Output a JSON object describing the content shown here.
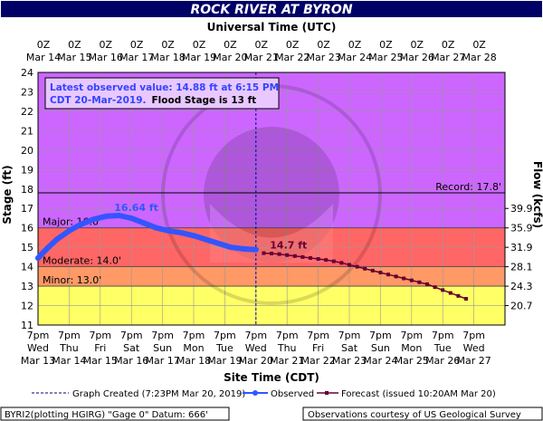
{
  "title": "ROCK RIVER AT BYRON",
  "top_axis_title": "Universal Time (UTC)",
  "bottom_axis_title": "Site Time (CDT)",
  "left_axis_title": "Stage (ft)",
  "right_axis_title": "Flow (kcfs)",
  "info_box": {
    "line1": "Latest observed value: 14.88 ft at 6:15 PM",
    "line2_blue": "CDT 20-Mar-2019.",
    "line2_black": "Flood Stage is 13 ft"
  },
  "legend": {
    "graph_created": "Graph Created (7:23PM Mar 20, 2019)",
    "observed": "Observed",
    "forecast": "Forecast (issued 10:20AM Mar 20)"
  },
  "footer": {
    "left": "BYRI2(plotting HGIRG) \"Gage 0\" Datum: 666'",
    "right": "Observations courtesy of US Geological Survey"
  },
  "colors": {
    "title_bg": "#000066",
    "major": "#ff6666",
    "moderate": "#ff9966",
    "minor": "#ffff66",
    "above_major": "#cc66ff",
    "below_minor": "#ffff66",
    "observed": "#3355ff",
    "forecast": "#660033",
    "now_line": "#0000cc"
  },
  "chart_data": {
    "type": "line",
    "ylim": [
      11,
      24
    ],
    "yticks": [
      11,
      12,
      13,
      14,
      15,
      16,
      17,
      18,
      19,
      20,
      21,
      22,
      23,
      24
    ],
    "xlim_days": [
      13,
      28
    ],
    "bottom_ticks": [
      {
        "time": "7pm",
        "day": "Wed",
        "date": "Mar 13"
      },
      {
        "time": "7pm",
        "day": "Thu",
        "date": "Mar 14"
      },
      {
        "time": "7pm",
        "day": "Fri",
        "date": "Mar 15"
      },
      {
        "time": "7pm",
        "day": "Sat",
        "date": "Mar 16"
      },
      {
        "time": "7pm",
        "day": "Sun",
        "date": "Mar 17"
      },
      {
        "time": "7pm",
        "day": "Mon",
        "date": "Mar 18"
      },
      {
        "time": "7pm",
        "day": "Tue",
        "date": "Mar 19"
      },
      {
        "time": "7pm",
        "day": "Wed",
        "date": "Mar 20"
      },
      {
        "time": "7pm",
        "day": "Thu",
        "date": "Mar 21"
      },
      {
        "time": "7pm",
        "day": "Fri",
        "date": "Mar 22"
      },
      {
        "time": "7pm",
        "day": "Sat",
        "date": "Mar 23"
      },
      {
        "time": "7pm",
        "day": "Sun",
        "date": "Mar 24"
      },
      {
        "time": "7pm",
        "day": "Mon",
        "date": "Mar 25"
      },
      {
        "time": "7pm",
        "day": "Tue",
        "date": "Mar 26"
      },
      {
        "time": "7pm",
        "day": "Wed",
        "date": "Mar 27"
      }
    ],
    "top_ticks": [
      {
        "time": "0Z",
        "date": "Mar 14"
      },
      {
        "time": "0Z",
        "date": "Mar 15"
      },
      {
        "time": "0Z",
        "date": "Mar 16"
      },
      {
        "time": "0Z",
        "date": "Mar 17"
      },
      {
        "time": "0Z",
        "date": "Mar 18"
      },
      {
        "time": "0Z",
        "date": "Mar 19"
      },
      {
        "time": "0Z",
        "date": "Mar 20"
      },
      {
        "time": "0Z",
        "date": "Mar 21"
      },
      {
        "time": "0Z",
        "date": "Mar 22"
      },
      {
        "time": "0Z",
        "date": "Mar 23"
      },
      {
        "time": "0Z",
        "date": "Mar 24"
      },
      {
        "time": "0Z",
        "date": "Mar 25"
      },
      {
        "time": "0Z",
        "date": "Mar 26"
      },
      {
        "time": "0Z",
        "date": "Mar 27"
      },
      {
        "time": "0Z",
        "date": "Mar 28"
      }
    ],
    "flow_ticks": [
      {
        "stage": 12,
        "label": "20.7"
      },
      {
        "stage": 13,
        "label": "24.3"
      },
      {
        "stage": 14,
        "label": "28.1"
      },
      {
        "stage": 15,
        "label": "31.9"
      },
      {
        "stage": 16,
        "label": "35.9"
      },
      {
        "stage": 17,
        "label": "39.9"
      }
    ],
    "flood_categories": [
      {
        "name": "Record",
        "label": "Record: 17.8'",
        "stage": 17.8
      },
      {
        "name": "Major",
        "label": "Major: 16.0'",
        "stage": 16.0
      },
      {
        "name": "Moderate",
        "label": "Moderate: 14.0'",
        "stage": 14.0
      },
      {
        "name": "Minor",
        "label": "Minor: 13.0'",
        "stage": 13.0
      }
    ],
    "now_day": 20,
    "annotations": [
      {
        "text": "16.64 ft",
        "x": 15.45,
        "y": 16.64
      },
      {
        "text": "14.7 ft",
        "x": 20.45,
        "y": 14.7
      }
    ],
    "series": [
      {
        "name": "Observed",
        "x": [
          13.0,
          13.3,
          13.6,
          14.0,
          14.4,
          14.8,
          15.2,
          15.6,
          16.0,
          16.4,
          16.8,
          17.2,
          17.6,
          18.0,
          18.4,
          18.8,
          19.2,
          19.6,
          20.0
        ],
        "y": [
          14.45,
          14.95,
          15.4,
          15.85,
          16.2,
          16.45,
          16.6,
          16.64,
          16.5,
          16.25,
          16.0,
          15.85,
          15.75,
          15.6,
          15.4,
          15.2,
          15.0,
          14.92,
          14.88
        ]
      },
      {
        "name": "Forecast",
        "x": [
          20.25,
          20.5,
          20.75,
          21.0,
          21.25,
          21.5,
          21.75,
          22.0,
          22.25,
          22.5,
          22.75,
          23.0,
          23.25,
          23.5,
          23.75,
          24.0,
          24.25,
          24.5,
          24.75,
          25.0,
          25.25,
          25.5,
          25.75,
          26.0,
          26.25,
          26.5,
          26.75
        ],
        "y": [
          14.7,
          14.68,
          14.65,
          14.6,
          14.55,
          14.5,
          14.45,
          14.4,
          14.35,
          14.28,
          14.2,
          14.1,
          14.0,
          13.9,
          13.8,
          13.7,
          13.6,
          13.5,
          13.4,
          13.3,
          13.2,
          13.1,
          12.95,
          12.8,
          12.65,
          12.5,
          12.35
        ]
      }
    ]
  }
}
